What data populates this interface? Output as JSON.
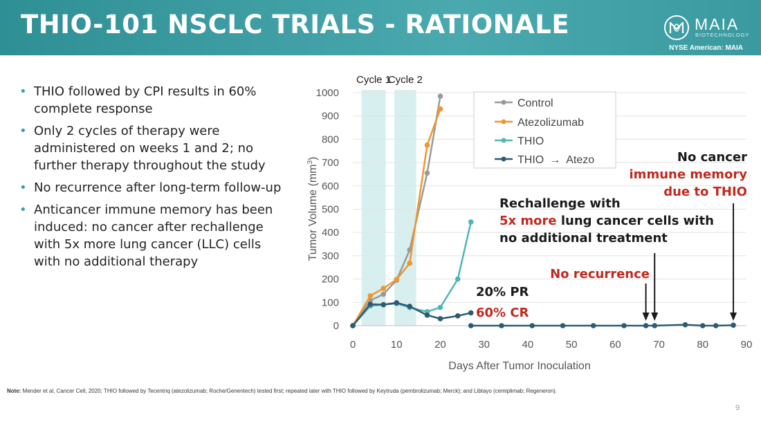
{
  "header": {
    "title": "THIO-101 NSCLC TRIALS - RATIONALE",
    "logo_name": "MAIA",
    "logo_sub": "BIOTECHNOLOGY",
    "ticker": "NYSE American: MAIA"
  },
  "bullets": [
    "THIO followed by CPI results in 60% complete response",
    "Only 2 cycles of therapy were administered on weeks 1 and 2; no further therapy throughout the study",
    "No recurrence after long-term follow-up",
    "Anticancer immune memory has been induced: no cancer after rechallenge with 5x more lung cancer (LLC) cells with no additional therapy"
  ],
  "chart_data": {
    "type": "line",
    "xlabel": "Days After Tumor Inoculation",
    "ylabel": "Tumor Volume (mm",
    "ylabel_sup": "3",
    "ylabel_close": ")",
    "xlim": [
      0,
      90
    ],
    "ylim": [
      0,
      1000
    ],
    "xticks": [
      0,
      10,
      20,
      30,
      40,
      50,
      60,
      70,
      80,
      90
    ],
    "yticks": [
      0,
      100,
      200,
      300,
      400,
      500,
      600,
      700,
      800,
      900,
      1000
    ],
    "cycles": [
      {
        "label": "Cycle 1",
        "start": 2,
        "end": 7.5
      },
      {
        "label": "Cycle 2",
        "start": 9.5,
        "end": 14.5
      }
    ],
    "series": [
      {
        "name": "Control",
        "color": "#9a9a9a",
        "x": [
          0,
          4,
          7,
          10,
          13,
          17,
          20
        ],
        "y": [
          0,
          108,
          135,
          195,
          325,
          655,
          985
        ]
      },
      {
        "name": "Atezolizumab",
        "color": "#f0962c",
        "x": [
          0,
          4,
          7,
          10,
          13,
          17,
          20
        ],
        "y": [
          0,
          128,
          160,
          198,
          268,
          775,
          930
        ]
      },
      {
        "name": "THIO",
        "color": "#4eb5b8",
        "x": [
          0,
          4,
          7,
          10,
          13,
          17,
          20,
          24,
          27
        ],
        "y": [
          0,
          85,
          90,
          95,
          78,
          60,
          78,
          200,
          445
        ]
      },
      {
        "name": "THIO",
        "name_suffix": "Atezo",
        "name_arrow": "→",
        "color": "#2d5b73",
        "segments": [
          {
            "x": [
              0,
              4,
              7,
              10,
              13,
              17,
              20,
              24,
              27
            ],
            "y": [
              0,
              92,
              90,
              98,
              83,
              45,
              30,
              42,
              55
            ]
          },
          {
            "x": [
              27,
              34,
              41,
              48,
              55,
              62,
              67,
              69,
              76,
              80,
              83,
              87
            ],
            "y": [
              0,
              0,
              0,
              0,
              0,
              0,
              0,
              0,
              4,
              0,
              0,
              2
            ]
          }
        ]
      }
    ],
    "annotations": {
      "pr": "20% PR",
      "cr": "60% CR",
      "no_recurrence": "No recurrence",
      "rechallenge_line1": "Rechallenge with",
      "rechallenge_red": "5x more",
      "rechallenge_line2_rest": " lung cancer cells with",
      "rechallenge_line3": "no additional treatment",
      "no_cancer": "No cancer",
      "immune_memory": "immune memory",
      "due_to_thio": "due to THIO"
    },
    "arrows_at_day": [
      67,
      69,
      87
    ],
    "colors": {
      "teal_band": "#d8efef",
      "red": "#c0281e",
      "dark": "#1a1a1a"
    }
  },
  "footer": {
    "note_label": "Note:",
    "note_text": " Mender et al, Cancer Cell, 2020; THIO followed by Tecentriq (atezolizumab; Roche/Genentech) tested first; repeated later with THIO followed by Keytruda (pembrolizumab; Merck); and Libtayo (cemiplimab; Regeneron).",
    "page": "9"
  }
}
